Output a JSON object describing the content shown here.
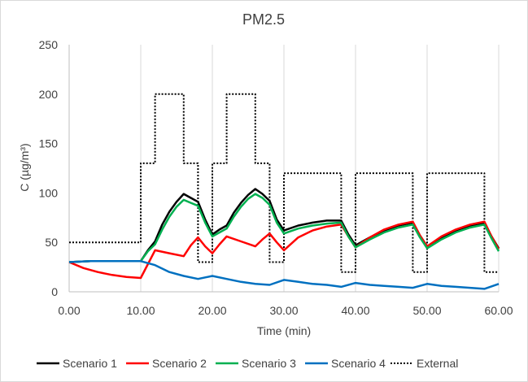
{
  "chart_data": {
    "type": "line",
    "title": "PM2.5",
    "xlabel": "Time (min)",
    "ylabel": "C (µg/m³)",
    "xlim": [
      0,
      60
    ],
    "ylim": [
      0,
      250
    ],
    "x_ticks": [
      0,
      10,
      20,
      30,
      40,
      50,
      60
    ],
    "x_tick_labels": [
      "0.00",
      "10.00",
      "20.00",
      "30.00",
      "40.00",
      "50.00",
      "60.00"
    ],
    "y_ticks": [
      0,
      50,
      100,
      150,
      200,
      250
    ],
    "y_tick_labels": [
      "0",
      "50",
      "100",
      "150",
      "200",
      "250"
    ],
    "grid": "vertical",
    "legend_position": "bottom",
    "series": [
      {
        "name": "Scenario 1",
        "color": "#000000",
        "style": "solid",
        "points": [
          [
            0,
            30
          ],
          [
            3,
            31
          ],
          [
            6,
            31
          ],
          [
            10,
            31
          ],
          [
            11,
            42
          ],
          [
            12,
            51
          ],
          [
            13,
            68
          ],
          [
            14,
            81
          ],
          [
            15,
            91
          ],
          [
            16,
            99
          ],
          [
            17,
            95
          ],
          [
            18,
            91
          ],
          [
            19,
            73
          ],
          [
            20,
            58
          ],
          [
            21,
            63
          ],
          [
            22,
            67
          ],
          [
            23,
            80
          ],
          [
            24,
            90
          ],
          [
            25,
            98
          ],
          [
            26,
            104
          ],
          [
            27,
            99
          ],
          [
            28,
            92
          ],
          [
            29,
            73
          ],
          [
            30,
            62
          ],
          [
            32,
            67
          ],
          [
            34,
            70
          ],
          [
            36,
            72
          ],
          [
            38,
            72
          ],
          [
            39,
            58
          ],
          [
            40,
            47
          ],
          [
            42,
            55
          ],
          [
            44,
            62
          ],
          [
            46,
            67
          ],
          [
            48,
            70
          ],
          [
            49,
            57
          ],
          [
            50,
            46
          ],
          [
            52,
            55
          ],
          [
            54,
            62
          ],
          [
            56,
            67
          ],
          [
            58,
            70
          ],
          [
            59,
            56
          ],
          [
            60,
            44
          ]
        ]
      },
      {
        "name": "Scenario 2",
        "color": "#ff0000",
        "style": "solid",
        "points": [
          [
            0,
            30
          ],
          [
            2,
            24
          ],
          [
            4,
            20
          ],
          [
            6,
            17
          ],
          [
            8,
            15
          ],
          [
            10,
            14
          ],
          [
            11,
            28
          ],
          [
            12,
            42
          ],
          [
            14,
            39
          ],
          [
            16,
            36
          ],
          [
            17,
            47
          ],
          [
            18,
            55
          ],
          [
            19,
            46
          ],
          [
            20,
            39
          ],
          [
            21,
            48
          ],
          [
            22,
            56
          ],
          [
            24,
            51
          ],
          [
            26,
            46
          ],
          [
            27,
            53
          ],
          [
            28,
            59
          ],
          [
            29,
            50
          ],
          [
            30,
            42
          ],
          [
            32,
            55
          ],
          [
            34,
            62
          ],
          [
            36,
            66
          ],
          [
            38,
            68
          ],
          [
            39,
            56
          ],
          [
            40,
            45
          ],
          [
            42,
            55
          ],
          [
            44,
            63
          ],
          [
            46,
            68
          ],
          [
            48,
            71
          ],
          [
            49,
            57
          ],
          [
            50,
            46
          ],
          [
            52,
            56
          ],
          [
            54,
            63
          ],
          [
            56,
            68
          ],
          [
            58,
            71
          ],
          [
            59,
            56
          ],
          [
            60,
            43
          ]
        ]
      },
      {
        "name": "Scenario 3",
        "color": "#00b050",
        "style": "solid",
        "points": [
          [
            0,
            30
          ],
          [
            3,
            31
          ],
          [
            6,
            31
          ],
          [
            10,
            31
          ],
          [
            11,
            41
          ],
          [
            12,
            48
          ],
          [
            13,
            63
          ],
          [
            14,
            76
          ],
          [
            15,
            86
          ],
          [
            16,
            93
          ],
          [
            17,
            90
          ],
          [
            18,
            87
          ],
          [
            19,
            70
          ],
          [
            20,
            56
          ],
          [
            21,
            60
          ],
          [
            22,
            64
          ],
          [
            23,
            76
          ],
          [
            24,
            86
          ],
          [
            25,
            94
          ],
          [
            26,
            99
          ],
          [
            27,
            95
          ],
          [
            28,
            88
          ],
          [
            29,
            70
          ],
          [
            30,
            59
          ],
          [
            32,
            64
          ],
          [
            34,
            67
          ],
          [
            36,
            69
          ],
          [
            38,
            70
          ],
          [
            39,
            56
          ],
          [
            40,
            45
          ],
          [
            42,
            53
          ],
          [
            44,
            60
          ],
          [
            46,
            65
          ],
          [
            48,
            68
          ],
          [
            49,
            55
          ],
          [
            50,
            44
          ],
          [
            52,
            53
          ],
          [
            54,
            60
          ],
          [
            56,
            65
          ],
          [
            58,
            68
          ],
          [
            59,
            54
          ],
          [
            60,
            41
          ]
        ]
      },
      {
        "name": "Scenario 4",
        "color": "#0070c0",
        "style": "solid",
        "points": [
          [
            0,
            30
          ],
          [
            3,
            31
          ],
          [
            6,
            31
          ],
          [
            10,
            31
          ],
          [
            12,
            27
          ],
          [
            14,
            20
          ],
          [
            16,
            16
          ],
          [
            18,
            13
          ],
          [
            20,
            16
          ],
          [
            22,
            13
          ],
          [
            24,
            10
          ],
          [
            26,
            8
          ],
          [
            28,
            7
          ],
          [
            30,
            12
          ],
          [
            32,
            10
          ],
          [
            34,
            8
          ],
          [
            36,
            7
          ],
          [
            38,
            5
          ],
          [
            40,
            9
          ],
          [
            42,
            7
          ],
          [
            44,
            6
          ],
          [
            46,
            5
          ],
          [
            48,
            4
          ],
          [
            50,
            8
          ],
          [
            52,
            6
          ],
          [
            54,
            5
          ],
          [
            56,
            4
          ],
          [
            58,
            3
          ],
          [
            60,
            8
          ]
        ]
      },
      {
        "name": "External",
        "color": "#000000",
        "style": "dotted",
        "points": [
          [
            0,
            50
          ],
          [
            10,
            50
          ],
          [
            10,
            130
          ],
          [
            12,
            130
          ],
          [
            12,
            200
          ],
          [
            16,
            200
          ],
          [
            16,
            130
          ],
          [
            18,
            130
          ],
          [
            18,
            30
          ],
          [
            20,
            30
          ],
          [
            20,
            130
          ],
          [
            22,
            130
          ],
          [
            22,
            200
          ],
          [
            26,
            200
          ],
          [
            26,
            130
          ],
          [
            28,
            130
          ],
          [
            28,
            30
          ],
          [
            30,
            30
          ],
          [
            30,
            120
          ],
          [
            38,
            120
          ],
          [
            38,
            20
          ],
          [
            40,
            20
          ],
          [
            40,
            120
          ],
          [
            48,
            120
          ],
          [
            48,
            20
          ],
          [
            50,
            20
          ],
          [
            50,
            120
          ],
          [
            58,
            120
          ],
          [
            58,
            20
          ],
          [
            60,
            20
          ]
        ]
      }
    ]
  }
}
